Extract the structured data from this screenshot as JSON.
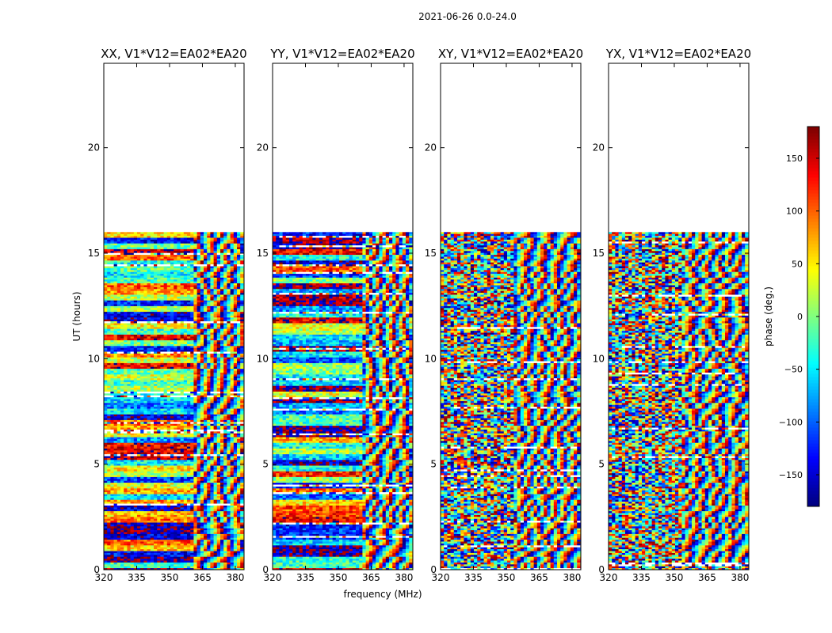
{
  "figure": {
    "suptitle": "2021-06-26 0.0-24.0"
  },
  "chart_data": {
    "type": "heatmap",
    "ylabel": "UT (hours)",
    "xlabel": "frequency (MHz)",
    "xlim": [
      320,
      384
    ],
    "ylim": [
      0,
      24
    ],
    "x_ticks": [
      320,
      335,
      350,
      365,
      380
    ],
    "y_ticks": [
      0,
      5,
      10,
      15,
      20
    ],
    "data_ut_range": [
      0,
      16
    ],
    "panels": [
      {
        "title": "XX, V1*V12=EA02*EA20"
      },
      {
        "title": "YY, V1*V12=EA02*EA20"
      },
      {
        "title": "XY, V1*V12=EA02*EA20"
      },
      {
        "title": "YX, V1*V12=EA02*EA20"
      }
    ],
    "colorbar": {
      "label": "phase (deg.)",
      "range": [
        -180,
        180
      ],
      "ticks": [
        -150,
        -100,
        -50,
        0,
        50,
        100,
        150
      ],
      "tick_labels": [
        "−150",
        "−100",
        "−50",
        "0",
        "50",
        "100",
        "150"
      ],
      "colormap": "jet"
    }
  }
}
